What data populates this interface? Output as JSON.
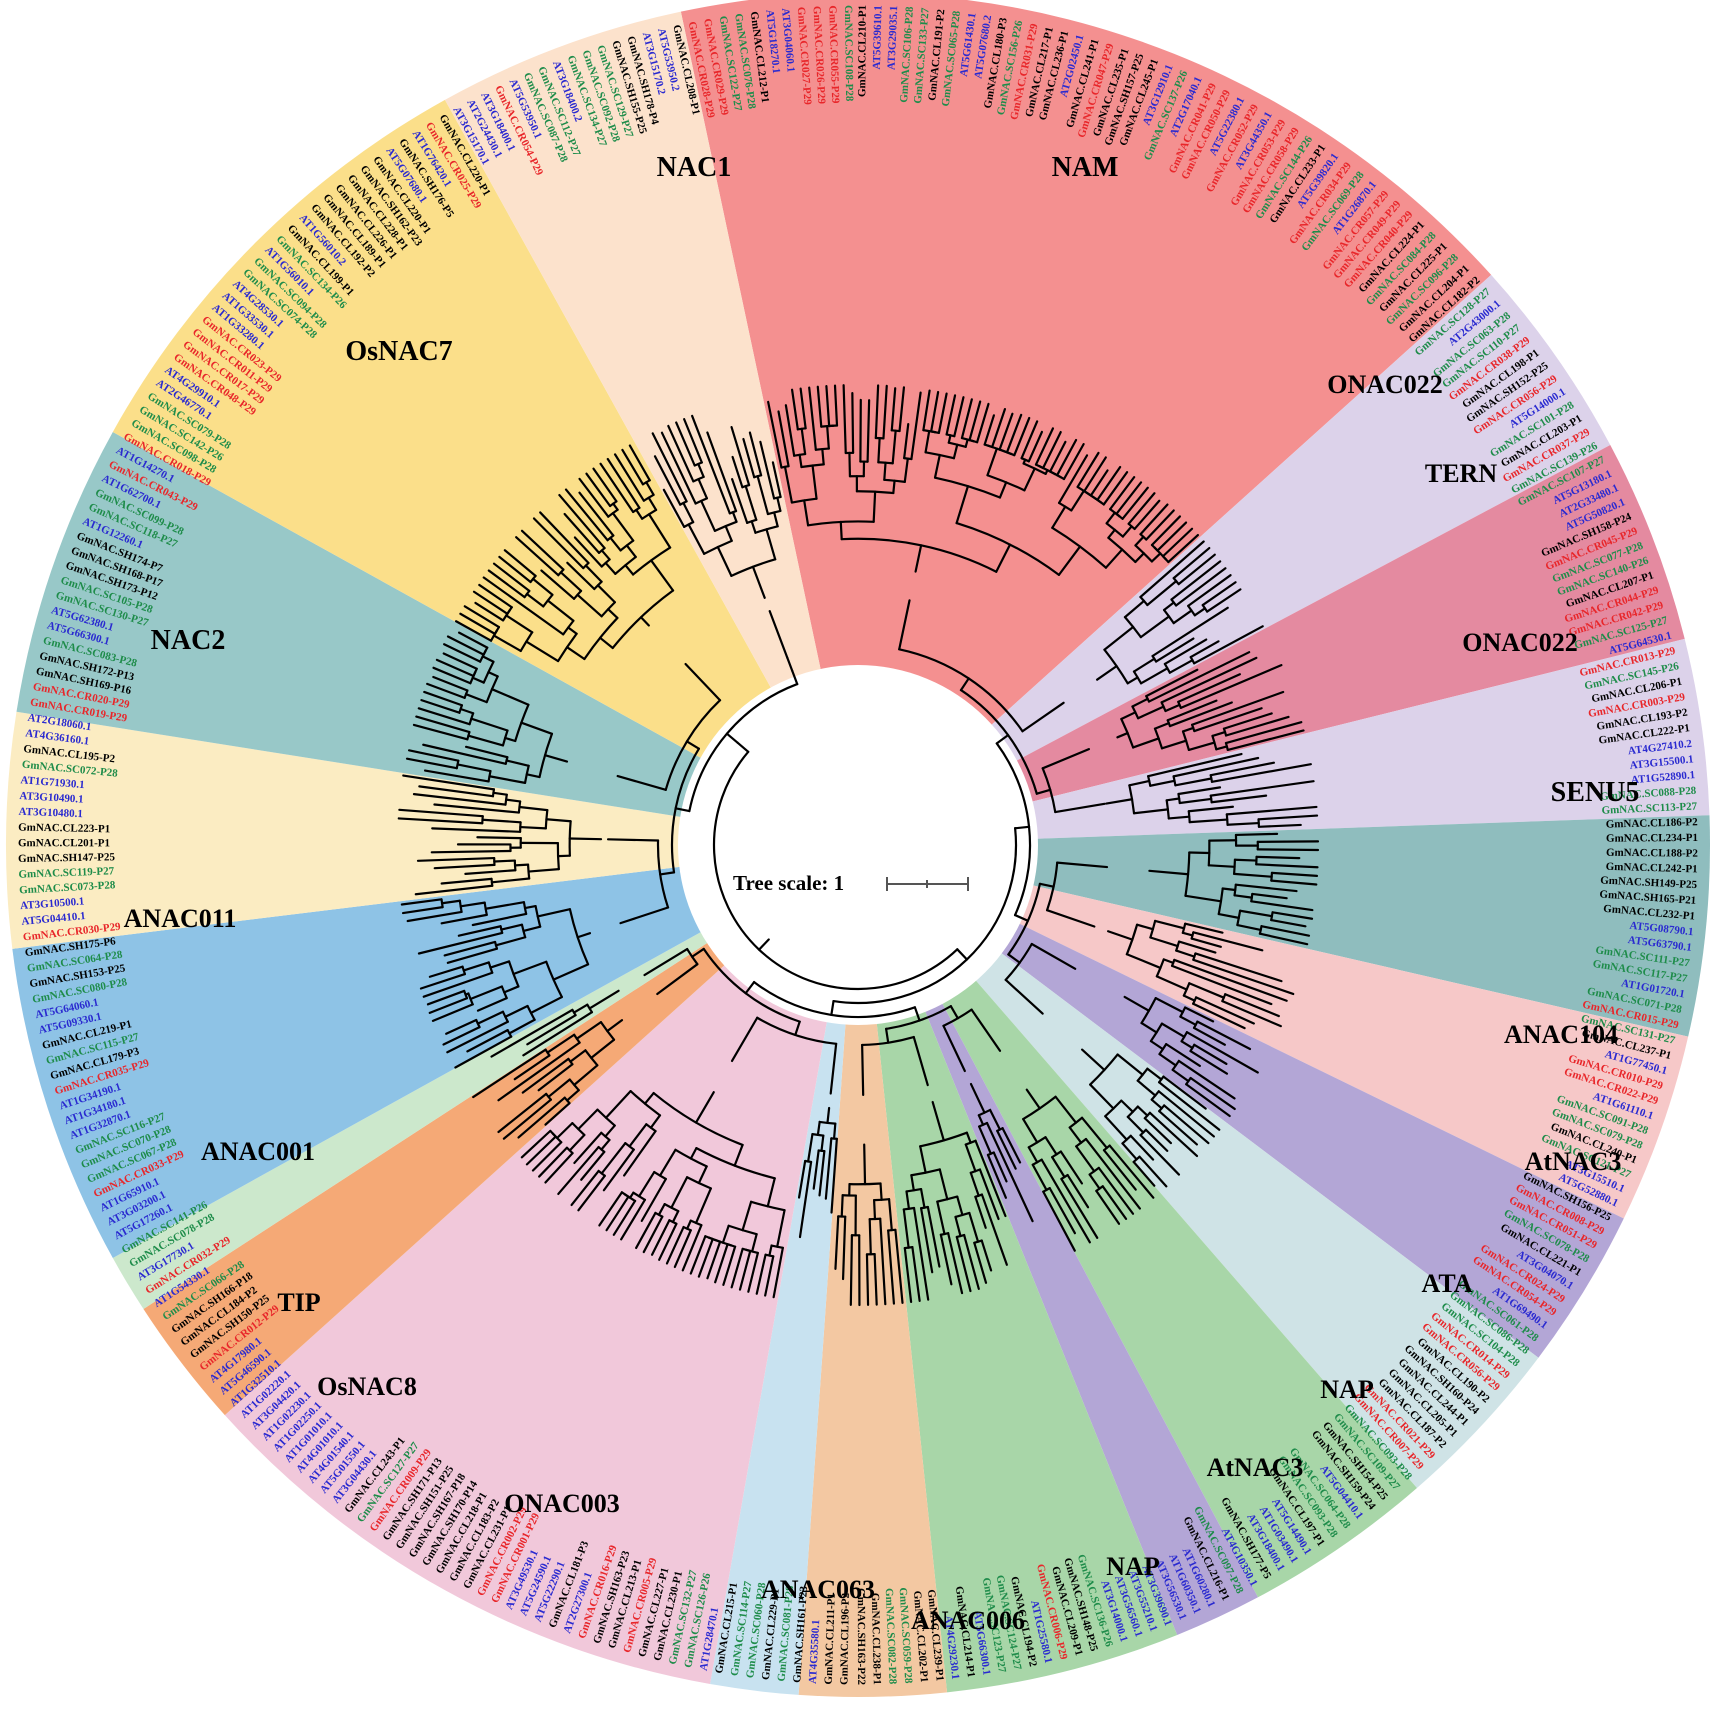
{
  "figure": {
    "scale_label": "Tree scale: 1",
    "colors": {
      "GmNAC.CR": "#e8262a",
      "GmNAC.SC": "#1e8c4a",
      "GmNAC.CL/SH": "#000000",
      "AT": "#2a2ad0"
    },
    "clades": [
      {
        "label": "NAM",
        "color": "#f49090",
        "from": -12,
        "to": 48
      },
      {
        "label": "ONAC022",
        "color": "#dcd2ea",
        "from": 48,
        "to": 62
      },
      {
        "label": "TERN",
        "color": "#e48aa0",
        "from": 62,
        "to": 76
      },
      {
        "label": "ONAC022",
        "color": "#dcd2ea",
        "from": 76,
        "to": 88
      },
      {
        "label": "SENU5",
        "color": "#8fbdbe",
        "from": 88,
        "to": 103
      },
      {
        "label": "ANAC104",
        "color": "#f6c8c8",
        "from": 103,
        "to": 116
      },
      {
        "label": "AtNAC3",
        "color": "#b3a6d6",
        "from": 116,
        "to": 127
      },
      {
        "label": "ATA",
        "color": "#cfe3e6",
        "from": 127,
        "to": 139
      },
      {
        "label": "NAP",
        "color": "#a8d6a8",
        "from": 139,
        "to": 152
      },
      {
        "label": "AtNAC3",
        "color": "#b3a6d6",
        "from": 152,
        "to": 158
      },
      {
        "label": "NAP",
        "color": "#a8d6a8",
        "from": 158,
        "to": 174
      },
      {
        "label": "ANAC006",
        "color": "#f3c8a2",
        "from": 174,
        "to": 184
      },
      {
        "label": "ANAC063",
        "color": "#c8e2f0",
        "from": 184,
        "to": 190
      },
      {
        "label": "ONAC003",
        "color": "#f1c8da",
        "from": 190,
        "to": 228
      },
      {
        "label": "OsNAC8",
        "color": "#f5a976",
        "from": 228,
        "to": 237
      },
      {
        "label": "TIP",
        "color": "#cce8cc",
        "from": 237,
        "to": 241
      },
      {
        "label": "ANAC001",
        "color": "#8ec3e6",
        "from": 241,
        "to": 263
      },
      {
        "label": "ANAC011",
        "color": "#fbecc2",
        "from": 263,
        "to": 279
      },
      {
        "label": "NAC2",
        "color": "#98c8c8",
        "from": 279,
        "to": 299
      },
      {
        "label": "OsNAC7",
        "color": "#fbdf8a",
        "from": 299,
        "to": 331
      },
      {
        "label": "NAC1",
        "color": "#fce2cc",
        "from": 331,
        "to": 348
      }
    ],
    "leaves": [
      "GmNAC.CR028-P29",
      "GmNAC.CR029-P29",
      "GmNAC.SC122-P27",
      "GmNAC.SC076-P28",
      "GmNAC.CL212-P1",
      "AT5G18270.1",
      "AT3G04060.1",
      "GmNAC.CR027-P29",
      "GmNAC.CR026-P29",
      "GmNAC.CR055-P29",
      "GmNAC.SC108-P28",
      "GmNAC.CL210-P1",
      "AT5G39610.1",
      "AT3G29035.1",
      "GmNAC.SC106-P28",
      "GmNAC.SC133-P27",
      "GmNAC.CL191-P2",
      "GmNAC.SC065-P28",
      "AT5G61430.1",
      "AT5G07680.2",
      "GmNAC.CL180-P3",
      "GmNAC.SC156-P26",
      "GmNAC.CR031-P29",
      "GmNAC.CL217-P1",
      "GmNAC.CL236-P1",
      "AT2G02450.1",
      "GmNAC.CL241-P1",
      "GmNAC.CR047-P29",
      "GmNAC.CL235-P1",
      "GmNAC.SH157-P25",
      "GmNAC.CL245-P1",
      "AT3G12910.1",
      "GmNAC.SC137-P26",
      "AT2G17040.1",
      "GmNAC.CR041-P29",
      "GmNAC.CR050-P29",
      "AT5G22380.1",
      "GmNAC.CR052-P29",
      "AT3G44350.1",
      "GmNAC.CR053-P29",
      "GmNAC.CR058-P29",
      "GmNAC.SC144-P26",
      "GmNAC.CL233-P1",
      "AT5G39820.1",
      "GmNAC.CR034-P29",
      "GmNAC.SC069-P28",
      "AT1G26870.1",
      "GmNAC.CR057-P29",
      "GmNAC.CR049-P29",
      "GmNAC.CR040-P29",
      "GmNAC.CL224-P1",
      "GmNAC.SC084-P28",
      "GmNAC.CL225-P1",
      "GmNAC.SC096-P28",
      "GmNAC.CL204-P1",
      "GmNAC.CL182-P2",
      "GmNAC.SC128-P27",
      "AT2G43000.1",
      "GmNAC.SC063-P28",
      "GmNAC.SC110-P27",
      "GmNAC.CR038-P29",
      "GmNAC.CL198-P1",
      "GmNAC.SH152-P25",
      "GmNAC.CR056-P29",
      "AT5G14000.1",
      "GmNAC.SC101-P28",
      "GmNAC.CL203-P1",
      "GmNAC.CR037-P29",
      "GmNAC.SC139-P26",
      "GmNAC.SC107-P27",
      "AT5G13180.1",
      "AT2G33480.1",
      "AT5G50820.1",
      "GmNAC.SH158-P24",
      "GmNAC.CR045-P29",
      "GmNAC.SC077-P28",
      "GmNAC.SC140-P26",
      "GmNAC.CL207-P1",
      "GmNAC.CR044-P29",
      "GmNAC.CR042-P29",
      "GmNAC.SC125-P27",
      "AT5G64530.1",
      "GmNAC.CR013-P29",
      "GmNAC.SC145-P26",
      "GmNAC.CL206-P1",
      "GmNAC.CR003-P29",
      "GmNAC.CL193-P2",
      "GmNAC.CL222-P1",
      "AT4G27410.2",
      "AT3G15500.1",
      "AT1G52890.1",
      "GmNAC.SC088-P28",
      "GmNAC.SC113-P27",
      "GmNAC.CL186-P2",
      "GmNAC.CL234-P1",
      "GmNAC.CL188-P2",
      "GmNAC.CL242-P1",
      "GmNAC.SH149-P25",
      "GmNAC.SH165-P21",
      "GmNAC.CL232-P1",
      "AT5G08790.1",
      "AT5G63790.1",
      "GmNAC.SC111-P27",
      "GmNAC.SC117-P27",
      "AT1G01720.1",
      "GmNAC.SC071-P28",
      "GmNAC.CR015-P29",
      "GmNAC.SC131-P27",
      "GmNAC.CL237-P1",
      "AT1G77450.1",
      "GmNAC.CR010-P29",
      "GmNAC.CR022-P29",
      "AT1G61110.1",
      "GmNAC.SC091-P28",
      "GmNAC.SC079-P28",
      "GmNAC.CL240-P1",
      "GmNAC.SC121-P27",
      "AT3G15510.1",
      "AT5G52880.1",
      "GmNAC.SH156-P25",
      "GmNAC.CR008-P29",
      "GmNAC.CR051-P29",
      "GmNAC.SC078-P28",
      "GmNAC.CL221-P1",
      "AT3G04070.1",
      "GmNAC.CR024-P29",
      "GmNAC.CR054-P29",
      "AT1G69490.1",
      "GmNAC.SC061-P28",
      "GmNAC.SC086-P28",
      "GmNAC.SC104-P28",
      "GmNAC.CR014-P29",
      "GmNAC.CR056-P29",
      "GmNAC.CL190-P2",
      "GmNAC.SH160-P24",
      "GmNAC.CL244-P1",
      "GmNAC.CL205-P1",
      "GmNAC.CL187-P2",
      "GmNAC.CR021-P29",
      "GmNAC.CR007-P29",
      "GmNAC.SC093-P28",
      "GmNAC.SC109-P27",
      "GmNAC.SH154-P25",
      "GmNAC.SH159-P24",
      "AT5G04410.1",
      "GmNAC.SC064-P28",
      "GmNAC.SC093-P28",
      "GmNAC.CL197-P1",
      "AT5G14490.1",
      "AT1G03490.1",
      "AT3G18400.1",
      "GmNAC.SH177-P5",
      "AT4G10350.1",
      "GmNAC.SC097-P28",
      "GmNAC.CL216-P1",
      "AT1G60280.1",
      "AT1G60350.1",
      "AT3G56530.1",
      "AT3G39690.1",
      "AT3G55210.1",
      "AT3G56560.1",
      "AT3G14000.1",
      "GmNAC.SC136-P26",
      "GmNAC.SH148-P25",
      "GmNAC.CL209-P1",
      "GmNAC.CR006-P29",
      "AT1G25580.1",
      "GmNAC.CL194-P2",
      "GmNAC.SC124-P27",
      "GmNAC.SC123-P27",
      "AT5G66300.1",
      "GmNAC.CL214-P1",
      "AT4G29230.1",
      "GmNAC.CL239-P1",
      "GmNAC.CL202-P1",
      "GmNAC.SC059-P28",
      "GmNAC.SC082-P28",
      "GmNAC.CL238-P1",
      "GmNAC.SH163-P22",
      "GmNAC.CL196-P2",
      "GmNAC.CL211-P1",
      "AT4G35580.1",
      "GmNAC.SH161-P23",
      "GmNAC.SC081-P28",
      "GmNAC.CL229-P1",
      "GmNAC.SC060-P28",
      "GmNAC.SC114-P27",
      "GmNAC.CL215-P1",
      "AT1G28470.1",
      "GmNAC.SC126-P26",
      "GmNAC.SC132-P27",
      "GmNAC.CL230-P1",
      "GmNAC.CL227-P1",
      "GmNAC.CR005-P29",
      "GmNAC.CL213-P1",
      "GmNAC.SH163-P23",
      "GmNAC.CR016-P29",
      "AT2G27300.1",
      "GmNAC.CL181-P3",
      "AT5G22290.1",
      "AT5G24590.1",
      "AT3G49530.1",
      "GmNAC.CR001-P29",
      "GmNAC.CR002-P29",
      "GmNAC.CL231-P1",
      "GmNAC.CL183-P2",
      "GmNAC.CL218-P1",
      "GmNAC.SH170-P14",
      "GmNAC.SH167-P18",
      "GmNAC.SH151-P25",
      "GmNAC.SH171-P13",
      "GmNAC.CR009-P29",
      "GmNAC.SC127-P27",
      "GmNAC.CL243-P1",
      "AT3G04430.1",
      "AT5G01550.1",
      "AT4G01540.1",
      "AT4G01010.1",
      "AT1G01010.1",
      "AT1G02250.1",
      "AT1G02230.1",
      "AT3G04420.1",
      "AT1G02220.1",
      "AT1G32510.1",
      "AT5G46590.1",
      "AT4G17980.1",
      "GmNAC.CR012-P29",
      "GmNAC.SH150-P25",
      "GmNAC.CL184-P2",
      "GmNAC.SH166-P18",
      "GmNAC.SC066-P28",
      "AT1G54330.1",
      "GmNAC.CR032-P29",
      "AT3G17730.1",
      "GmNAC.SC078-P28",
      "GmNAC.SC141-P26",
      "AT5G17260.1",
      "AT3G03200.1",
      "AT1G65910.1",
      "GmNAC.CR033-P29",
      "GmNAC.SC067-P28",
      "GmNAC.SC070-P28",
      "GmNAC.SC116-P27",
      "AT1G32870.1",
      "AT1G34180.1",
      "AT1G34190.1",
      "GmNAC.CR035-P29",
      "GmNAC.CL179-P3",
      "GmNAC.SC115-P27",
      "GmNAC.CL219-P1",
      "AT5G09330.1",
      "AT5G64060.1",
      "GmNAC.SC080-P28",
      "GmNAC.SH153-P25",
      "GmNAC.SC064-P28",
      "GmNAC.SH175-P6",
      "GmNAC.CR030-P29",
      "AT5G04410.1",
      "AT3G10500.1",
      "GmNAC.SC073-P28",
      "GmNAC.SC119-P27",
      "GmNAC.SH147-P25",
      "GmNAC.CL201-P1",
      "GmNAC.CL223-P1",
      "AT3G10480.1",
      "AT3G10490.1",
      "AT1G71930.1",
      "GmNAC.SC072-P28",
      "GmNAC.CL195-P2",
      "AT4G36160.1",
      "AT2G18060.1",
      "GmNAC.CR019-P29",
      "GmNAC.CR020-P29",
      "GmNAC.SH169-P16",
      "GmNAC.SH172-P13",
      "GmNAC.SC083-P28",
      "AT5G66300.1",
      "AT5G62380.1",
      "GmNAC.SC130-P27",
      "GmNAC.SC105-P28",
      "GmNAC.SH173-P12",
      "GmNAC.SH168-P17",
      "GmNAC.SH174-P7",
      "AT1G12260.1",
      "GmNAC.SC118-P27",
      "GmNAC.SC099-P28",
      "AT1G62700.1",
      "GmNAC.CR043-P29",
      "AT1G14270.1",
      "GmNAC.CR018-P29",
      "GmNAC.SC098-P28",
      "GmNAC.SC142-P26",
      "GmNAC.SC079-P28",
      "AT2G46770.1",
      "AT4G29910.1",
      "GmNAC.CR048-P29",
      "GmNAC.CR017-P29",
      "GmNAC.CR011-P29",
      "GmNAC.CR023-P29",
      "AT1G33280.1",
      "AT1G33530.1",
      "AT4G28530.1",
      "GmNAC.SC074-P28",
      "GmNAC.SC094-P28",
      "AT1G56010.1",
      "GmNAC.SC134-P26",
      "GmNAC.CL199-P1",
      "AT1G56010.2",
      "GmNAC.CL192-P2",
      "GmNAC.CL189-P1",
      "GmNAC.CL226-P1",
      "GmNAC.CL228-P1",
      "GmNAC.SH162-P23",
      "GmNAC.CL220-P1",
      "AT5G07680.1",
      "GmNAC.SH176-P5",
      "AT1G76420.1",
      "GmNAC.CR025-P29",
      "GmNAC.CL220-P1",
      "AT3G15170.1",
      "AT2G24430.1",
      "AT3G18400.1",
      "GmNAC.CR054-P29",
      "AT5G53950.1",
      "GmNAC.SC087-P28",
      "GmNAC.SC112-P27",
      "AT3G18400.2",
      "GmNAC.SC134-P27",
      "GmNAC.SC092-P28",
      "GmNAC.SC129-P27",
      "GmNAC.SH155-P25",
      "GmNAC.SH178-P4",
      "AT3G15170.2",
      "AT5G53950.2",
      "GmNAC.CL208-P1"
    ]
  }
}
